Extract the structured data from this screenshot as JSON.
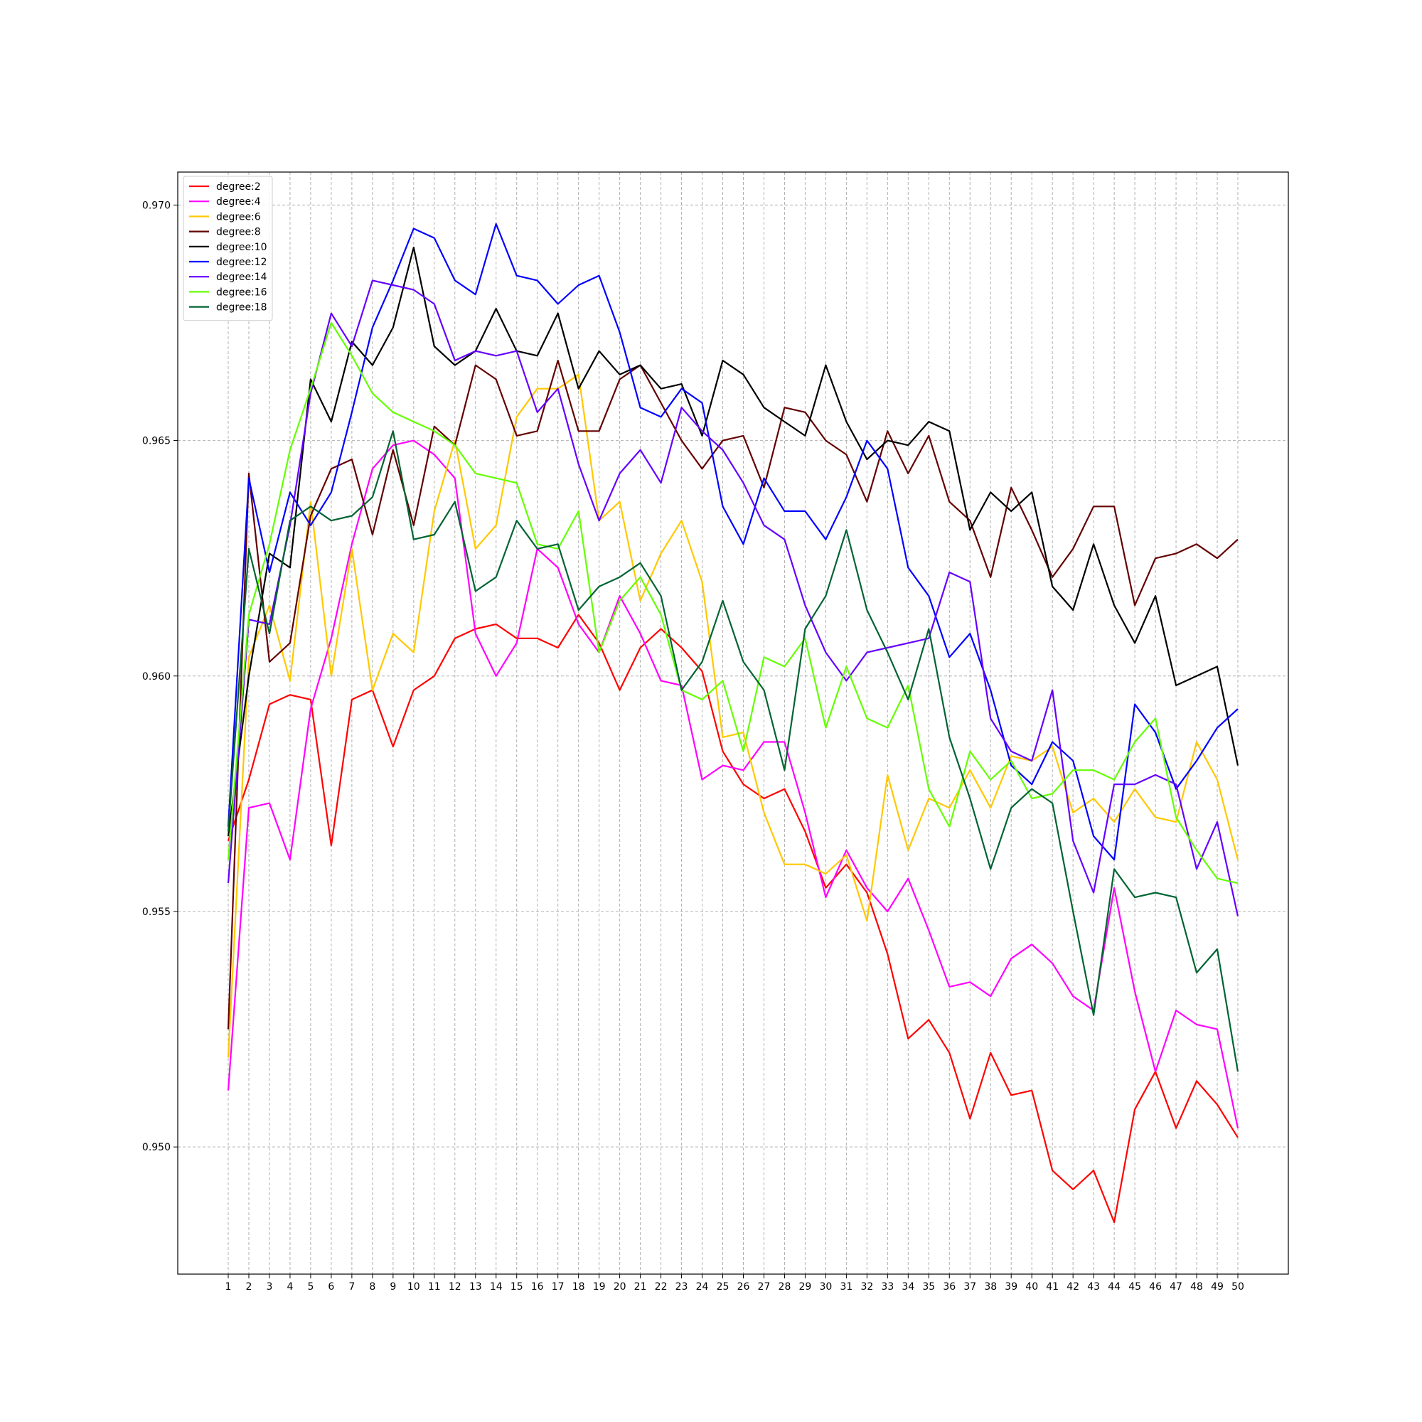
{
  "chart_data": {
    "type": "line",
    "title": "",
    "xlabel": "",
    "ylabel": "",
    "x": [
      1,
      2,
      3,
      4,
      5,
      6,
      7,
      8,
      9,
      10,
      11,
      12,
      13,
      14,
      15,
      16,
      17,
      18,
      19,
      20,
      21,
      22,
      23,
      24,
      25,
      26,
      27,
      28,
      29,
      30,
      31,
      32,
      33,
      34,
      35,
      36,
      37,
      38,
      39,
      40,
      41,
      42,
      43,
      44,
      45,
      46,
      47,
      48,
      49,
      50
    ],
    "xlim": [
      -1.45,
      52.45
    ],
    "ylim": [
      0.9473,
      0.9707
    ],
    "yticks": [
      "0.950",
      "0.955",
      "0.960",
      "0.965",
      "0.970"
    ],
    "grid": true,
    "legend_position": "upper-left",
    "series": [
      {
        "name": "degree:2",
        "color": "#ff0000",
        "values": [
          0.9565,
          0.9578,
          0.9594,
          0.9596,
          0.9595,
          0.9564,
          0.9595,
          0.9597,
          0.9585,
          0.9597,
          0.96,
          0.9608,
          0.961,
          0.9611,
          0.9608,
          0.9608,
          0.9606,
          0.9613,
          0.9607,
          0.9597,
          0.9606,
          0.961,
          0.9606,
          0.9601,
          0.9584,
          0.9577,
          0.9574,
          0.9576,
          0.9567,
          0.9555,
          0.956,
          0.9554,
          0.9541,
          0.9523,
          0.9527,
          0.952,
          0.9506,
          0.952,
          0.9511,
          0.9512,
          0.9495,
          0.9491,
          0.9495,
          0.9484,
          0.9508,
          0.9516,
          0.9504,
          0.9514,
          0.9509,
          0.9502
        ]
      },
      {
        "name": "degree:4",
        "color": "#ff00ff",
        "values": [
          0.9512,
          0.9572,
          0.9573,
          0.9561,
          0.9593,
          0.9608,
          0.9628,
          0.9644,
          0.9649,
          0.965,
          0.9647,
          0.9642,
          0.9609,
          0.96,
          0.9607,
          0.9627,
          0.9623,
          0.9611,
          0.9605,
          0.9617,
          0.9609,
          0.9599,
          0.9598,
          0.9578,
          0.9581,
          0.958,
          0.9586,
          0.9586,
          0.9571,
          0.9553,
          0.9563,
          0.9555,
          0.955,
          0.9557,
          0.9546,
          0.9534,
          0.9535,
          0.9532,
          0.954,
          0.9543,
          0.9539,
          0.9532,
          0.9529,
          0.9555,
          0.9533,
          0.9516,
          0.9529,
          0.9526,
          0.9525,
          0.9504
        ]
      },
      {
        "name": "degree:6",
        "color": "#ffc800",
        "values": [
          0.9519,
          0.9604,
          0.9615,
          0.9599,
          0.9637,
          0.96,
          0.9627,
          0.9597,
          0.9609,
          0.9605,
          0.9635,
          0.965,
          0.9627,
          0.9632,
          0.9655,
          0.9661,
          0.9661,
          0.9664,
          0.9633,
          0.9637,
          0.9616,
          0.9626,
          0.9633,
          0.962,
          0.9587,
          0.9588,
          0.9571,
          0.956,
          0.956,
          0.9558,
          0.9562,
          0.9548,
          0.9579,
          0.9563,
          0.9574,
          0.9572,
          0.958,
          0.9572,
          0.9583,
          0.9582,
          0.9585,
          0.9571,
          0.9574,
          0.9569,
          0.9576,
          0.957,
          0.9569,
          0.9586,
          0.9578,
          0.9561
        ]
      },
      {
        "name": "degree:8",
        "color": "#640000",
        "values": [
          0.9525,
          0.9643,
          0.9603,
          0.9607,
          0.9634,
          0.9644,
          0.9646,
          0.963,
          0.9648,
          0.9632,
          0.9653,
          0.9649,
          0.9666,
          0.9663,
          0.9651,
          0.9652,
          0.9667,
          0.9652,
          0.9652,
          0.9663,
          0.9666,
          0.9658,
          0.965,
          0.9644,
          0.965,
          0.9651,
          0.964,
          0.9657,
          0.9656,
          0.965,
          0.9647,
          0.9637,
          0.9652,
          0.9643,
          0.9651,
          0.9637,
          0.9633,
          0.9621,
          0.964,
          0.9631,
          0.9621,
          0.9627,
          0.9636,
          0.9636,
          0.9615,
          0.9625,
          0.9626,
          0.9628,
          0.9625,
          0.9629
        ]
      },
      {
        "name": "degree:10",
        "color": "#000000",
        "values": [
          0.9566,
          0.96,
          0.9626,
          0.9623,
          0.9663,
          0.9654,
          0.9671,
          0.9666,
          0.9674,
          0.9691,
          0.967,
          0.9666,
          0.9669,
          0.9678,
          0.9669,
          0.9668,
          0.9677,
          0.9661,
          0.9669,
          0.9664,
          0.9666,
          0.9661,
          0.9662,
          0.9651,
          0.9667,
          0.9664,
          0.9657,
          0.9654,
          0.9651,
          0.9666,
          0.9654,
          0.9646,
          0.965,
          0.9649,
          0.9654,
          0.9652,
          0.9631,
          0.9639,
          0.9635,
          0.9639,
          0.9619,
          0.9614,
          0.9628,
          0.9615,
          0.9607,
          0.9617,
          0.9598,
          0.96,
          0.9602,
          0.9581
        ]
      },
      {
        "name": "degree:12",
        "color": "#0000ff",
        "values": [
          0.9568,
          0.9642,
          0.9622,
          0.9639,
          0.9632,
          0.9639,
          0.9656,
          0.9674,
          0.9684,
          0.9695,
          0.9693,
          0.9684,
          0.9681,
          0.9696,
          0.9685,
          0.9684,
          0.9679,
          0.9683,
          0.9685,
          0.9673,
          0.9657,
          0.9655,
          0.9661,
          0.9658,
          0.9636,
          0.9628,
          0.9642,
          0.9635,
          0.9635,
          0.9629,
          0.9638,
          0.965,
          0.9644,
          0.9623,
          0.9617,
          0.9604,
          0.9609,
          0.9597,
          0.9581,
          0.9577,
          0.9586,
          0.9582,
          0.9566,
          0.9561,
          0.9594,
          0.9588,
          0.9576,
          0.9582,
          0.9589,
          0.9593
        ]
      },
      {
        "name": "degree:14",
        "color": "#6400ff",
        "values": [
          0.9556,
          0.9612,
          0.9611,
          0.9632,
          0.966,
          0.9677,
          0.967,
          0.9684,
          0.9683,
          0.9682,
          0.9679,
          0.9667,
          0.9669,
          0.9668,
          0.9669,
          0.9656,
          0.9661,
          0.9645,
          0.9633,
          0.9643,
          0.9648,
          0.9641,
          0.9657,
          0.9652,
          0.9648,
          0.9641,
          0.9632,
          0.9629,
          0.9615,
          0.9605,
          0.9599,
          0.9605,
          0.9606,
          0.9607,
          0.9608,
          0.9622,
          0.962,
          0.9591,
          0.9584,
          0.9582,
          0.9597,
          0.9565,
          0.9554,
          0.9577,
          0.9577,
          0.9579,
          0.9577,
          0.9559,
          0.9569,
          0.9549
        ]
      },
      {
        "name": "degree:16",
        "color": "#64ff00",
        "values": [
          0.9561,
          0.9613,
          0.9628,
          0.9648,
          0.9661,
          0.9675,
          0.9668,
          0.966,
          0.9656,
          0.9654,
          0.9652,
          0.9649,
          0.9643,
          0.9642,
          0.9641,
          0.9628,
          0.9627,
          0.9635,
          0.9605,
          0.9616,
          0.9621,
          0.9613,
          0.9597,
          0.9595,
          0.9599,
          0.9584,
          0.9604,
          0.9602,
          0.9608,
          0.9589,
          0.9602,
          0.9591,
          0.9589,
          0.9598,
          0.9576,
          0.9568,
          0.9584,
          0.9578,
          0.9582,
          0.9574,
          0.9575,
          0.958,
          0.958,
          0.9578,
          0.9586,
          0.9591,
          0.957,
          0.9563,
          0.9557,
          0.9556
        ]
      },
      {
        "name": "degree:18",
        "color": "#006432",
        "values": [
          0.9567,
          0.9627,
          0.9609,
          0.9633,
          0.9636,
          0.9633,
          0.9634,
          0.9638,
          0.9652,
          0.9629,
          0.963,
          0.9637,
          0.9618,
          0.9621,
          0.9633,
          0.9627,
          0.9628,
          0.9614,
          0.9619,
          0.9621,
          0.9624,
          0.9617,
          0.9597,
          0.9603,
          0.9616,
          0.9603,
          0.9597,
          0.958,
          0.961,
          0.9617,
          0.9631,
          0.9614,
          0.9605,
          0.9595,
          0.961,
          0.9587,
          0.9574,
          0.9559,
          0.9572,
          0.9576,
          0.9573,
          0.955,
          0.9528,
          0.9559,
          0.9553,
          0.9554,
          0.9553,
          0.9537,
          0.9542,
          0.9516
        ]
      }
    ]
  }
}
